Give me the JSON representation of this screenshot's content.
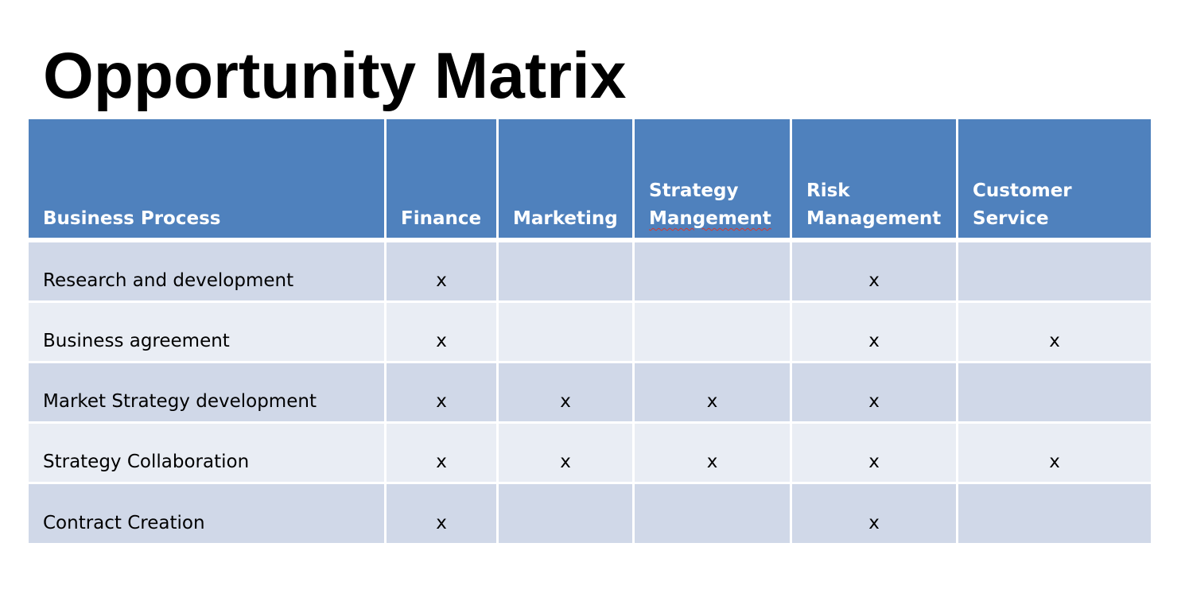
{
  "title": "Opportunity Matrix",
  "table": {
    "headers": [
      {
        "label": "Business Process"
      },
      {
        "label": "Finance"
      },
      {
        "label": "Marketing"
      },
      {
        "line1": "Strategy",
        "line2": "Mangement"
      },
      {
        "line1": "Risk",
        "line2": "Management"
      },
      {
        "line1": "Customer",
        "line2": "Service"
      }
    ],
    "rows": [
      {
        "process": "Research and development",
        "cells": [
          "x",
          "",
          "",
          "x",
          ""
        ]
      },
      {
        "process": "Business agreement",
        "cells": [
          "x",
          "",
          "",
          "x",
          "x"
        ]
      },
      {
        "process": "Market Strategy development",
        "cells": [
          "x",
          "x",
          "x",
          "x",
          ""
        ]
      },
      {
        "process": "Strategy Collaboration",
        "cells": [
          "x",
          "x",
          "x",
          "x",
          "x"
        ]
      },
      {
        "process": "Contract Creation",
        "cells": [
          "x",
          "",
          "",
          "x",
          ""
        ]
      }
    ]
  },
  "colors": {
    "header_fill": "#4f81bd",
    "row_odd_fill": "#d0d8e8",
    "row_even_fill": "#e9edf4",
    "spellcheck_underline": "#d9372b"
  }
}
